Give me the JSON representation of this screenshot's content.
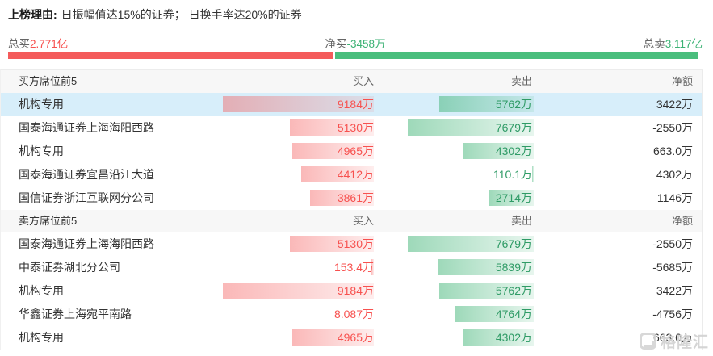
{
  "reason": {
    "label": "上榜理由:",
    "text": "日振幅值达15%的证券； 日换手率达20%的证券"
  },
  "summary": {
    "total_buy_label": "总买",
    "total_buy_value": "2.771亿",
    "net_buy_label": "净买",
    "net_buy_value": "-3458万",
    "total_sell_label": "总卖",
    "total_sell_value": "3.117亿",
    "buy_ratio_percent": 47.06
  },
  "colors": {
    "red": "#f7514f",
    "green": "#3cb274",
    "bar_red": "#f45b5b",
    "bar_green": "#4abe7d",
    "row_highlight": "#d7eefa"
  },
  "watermark": {
    "text": "格隆汇"
  },
  "tables": [
    {
      "title": "买方席位前5",
      "col_buy": "买入",
      "col_sell": "卖出",
      "col_net": "净额",
      "rows": [
        {
          "seat": "机构专用",
          "buy": "9184万",
          "buy_num": 9184,
          "sell": "5762万",
          "sell_num": 5762,
          "net": "3422万",
          "highlight": true
        },
        {
          "seat": "国泰海通证券上海海阳西路",
          "buy": "5130万",
          "buy_num": 5130,
          "sell": "7679万",
          "sell_num": 7679,
          "net": "-2550万",
          "highlight": false
        },
        {
          "seat": "机构专用",
          "buy": "4965万",
          "buy_num": 4965,
          "sell": "4302万",
          "sell_num": 4302,
          "net": "663.0万",
          "highlight": false
        },
        {
          "seat": "国泰海通证券宜昌沿江大道",
          "buy": "4412万",
          "buy_num": 4412,
          "sell": "110.1万",
          "sell_num": 110.1,
          "net": "4302万",
          "highlight": false
        },
        {
          "seat": "国信证券浙江互联网分公司",
          "buy": "3861万",
          "buy_num": 3861,
          "sell": "2714万",
          "sell_num": 2714,
          "net": "1146万",
          "highlight": false
        }
      ]
    },
    {
      "title": "卖方席位前5",
      "col_buy": "买入",
      "col_sell": "卖出",
      "col_net": "净额",
      "rows": [
        {
          "seat": "国泰海通证券上海海阳西路",
          "buy": "5130万",
          "buy_num": 5130,
          "sell": "7679万",
          "sell_num": 7679,
          "net": "-2550万",
          "highlight": false
        },
        {
          "seat": "中泰证券湖北分公司",
          "buy": "153.4万",
          "buy_num": 153.4,
          "sell": "5839万",
          "sell_num": 5839,
          "net": "-5685万",
          "highlight": false
        },
        {
          "seat": "机构专用",
          "buy": "9184万",
          "buy_num": 9184,
          "sell": "5762万",
          "sell_num": 5762,
          "net": "3422万",
          "highlight": false
        },
        {
          "seat": "华鑫证券上海宛平南路",
          "buy": "8.087万",
          "buy_num": 8.087,
          "sell": "4764万",
          "sell_num": 4764,
          "net": "-4756万",
          "highlight": false
        },
        {
          "seat": "机构专用",
          "buy": "4965万",
          "buy_num": 4965,
          "sell": "4302万",
          "sell_num": 4302,
          "net": "663.0万",
          "highlight": false
        }
      ]
    }
  ]
}
